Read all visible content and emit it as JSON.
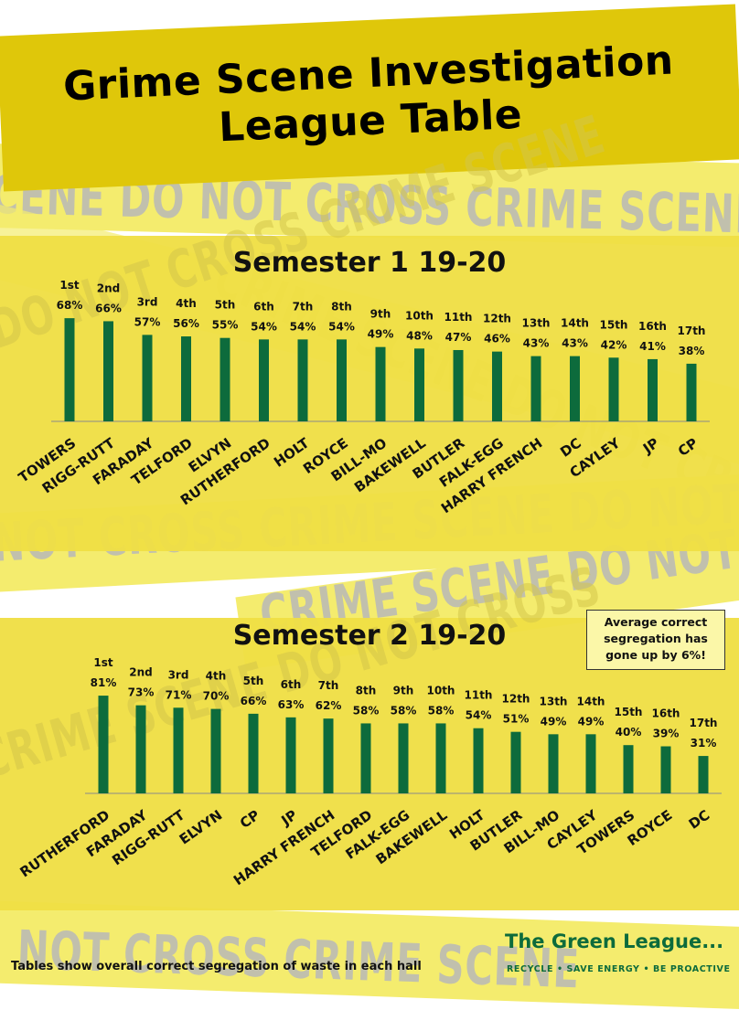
{
  "header": {
    "title_line1": "Grime Scene Investigation",
    "title_line2": "League Table"
  },
  "tape": {
    "text1": "SCENE DO NOT CROSS  CRIME SCENE",
    "text2": "CRIME SCENE DO NOT CROSS",
    "text3": "NOT CROSS  CRIME SCENE DO NOT",
    "text4": "CRIME SCENE DO NOT CROSS",
    "text5": "DO NOT CROSS  CRIME SCENE",
    "text6": "NOT CROSS  CRIME SCENE"
  },
  "colors": {
    "bar": "#0d6b3c",
    "title_band": "#dfc70a",
    "chart_band": "#efdf45",
    "tape": "#f4ec6e",
    "brand": "#0d6b3c"
  },
  "note": {
    "line1": "Average correct",
    "line2": "segregation has",
    "line3": "gone up by 6%!"
  },
  "footer": {
    "note": "Tables show overall correct segregation of waste in each hall",
    "brand": "The Green League...",
    "tagline": "RECYCLE  •  SAVE ENERGY  •  BE PROACTIVE"
  },
  "chart_data": [
    {
      "type": "bar",
      "title": "Semester 1 19-20",
      "categories": [
        "TOWERS",
        "RIGG-RUTT",
        "FARADAY",
        "TELFORD",
        "ELVYN",
        "RUTHERFORD",
        "HOLT",
        "ROYCE",
        "BILL-MO",
        "BAKEWELL",
        "BUTLER",
        "FALK-EGG",
        "HARRY FRENCH",
        "DC",
        "CAYLEY",
        "JP",
        "CP"
      ],
      "values": [
        68,
        66,
        57,
        56,
        55,
        54,
        54,
        54,
        49,
        48,
        47,
        46,
        43,
        43,
        42,
        41,
        38
      ],
      "value_labels": [
        "68%",
        "66%",
        "57%",
        "56%",
        "55%",
        "54%",
        "54%",
        "54%",
        "49%",
        "48%",
        "47%",
        "46%",
        "43%",
        "43%",
        "42%",
        "41%",
        "38%"
      ],
      "ranks": [
        "1st",
        "2nd",
        "3rd",
        "4th",
        "5th",
        "6th",
        "7th",
        "8th",
        "9th",
        "10th",
        "11th",
        "12th",
        "13th",
        "14th",
        "15th",
        "16th",
        "17th"
      ],
      "ylim": [
        0,
        100
      ],
      "grid": false,
      "legend": "none"
    },
    {
      "type": "bar",
      "title": "Semester 2 19-20",
      "categories": [
        "RUTHERFORD",
        "FARADAY",
        "RIGG-RUTT",
        "ELVYN",
        "CP",
        "JP",
        "HARRY FRENCH",
        "TELFORD",
        "FALK-EGG",
        "BAKEWELL",
        "HOLT",
        "BUTLER",
        "BILL-MO",
        "CAYLEY",
        "TOWERS",
        "ROYCE",
        "DC"
      ],
      "values": [
        81,
        73,
        71,
        70,
        66,
        63,
        62,
        58,
        58,
        58,
        54,
        51,
        49,
        49,
        40,
        39,
        31
      ],
      "value_labels": [
        "81%",
        "73%",
        "71%",
        "70%",
        "66%",
        "63%",
        "62%",
        "58%",
        "58%",
        "58%",
        "54%",
        "51%",
        "49%",
        "49%",
        "40%",
        "39%",
        "31%"
      ],
      "ranks": [
        "1st",
        "2nd",
        "3rd",
        "4th",
        "5th",
        "6th",
        "7th",
        "8th",
        "9th",
        "10th",
        "11th",
        "12th",
        "13th",
        "14th",
        "15th",
        "16th",
        "17th"
      ],
      "ylim": [
        0,
        100
      ],
      "grid": false,
      "legend": "none"
    }
  ]
}
